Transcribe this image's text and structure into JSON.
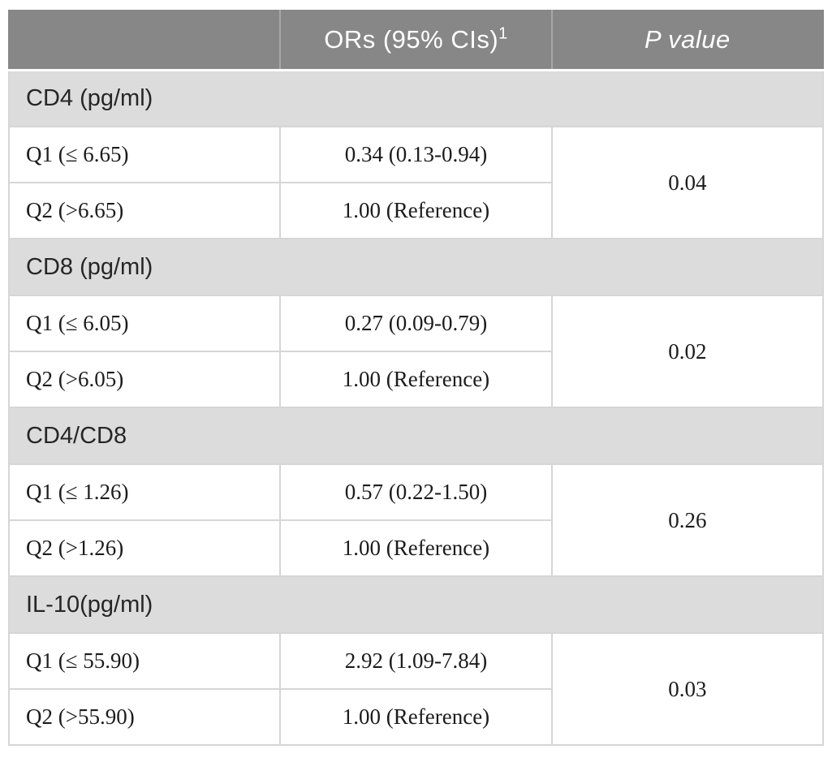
{
  "colors": {
    "header_bg": "#878787",
    "header_text": "#ffffff",
    "header_divider": "#a8a8a8",
    "band_bg": "#dcdcdc",
    "band_text": "#262626",
    "body_text": "#1c1c1c",
    "cell_border": "#d6d6d6",
    "outer_border": "#c9c9c9",
    "page_bg": "#ffffff"
  },
  "header": {
    "col1_label": "",
    "col2_label": "ORs (95% CIs)",
    "col2_superscript": "1",
    "col3_label": "P value"
  },
  "sections": [
    {
      "label": "CD4 (pg/ml)",
      "p_value": "0.04",
      "rows": [
        {
          "quartile": "Q1 (≤ 6.65)",
          "or": "0.34 (0.13-0.94)"
        },
        {
          "quartile": "Q2 (>6.65)",
          "or": "1.00 (Reference)"
        }
      ]
    },
    {
      "label": "CD8 (pg/ml)",
      "p_value": "0.02",
      "rows": [
        {
          "quartile": "Q1 (≤ 6.05)",
          "or": "0.27 (0.09-0.79)"
        },
        {
          "quartile": "Q2 (>6.05)",
          "or": "1.00 (Reference)"
        }
      ]
    },
    {
      "label": "CD4/CD8",
      "p_value": "0.26",
      "rows": [
        {
          "quartile": "Q1 (≤ 1.26)",
          "or": "0.57 (0.22-1.50)"
        },
        {
          "quartile": "Q2 (>1.26)",
          "or": "1.00 (Reference)"
        }
      ]
    },
    {
      "label": "IL-10(pg/ml)",
      "p_value": "0.03",
      "rows": [
        {
          "quartile": "Q1 (≤ 55.90)",
          "or": "2.92 (1.09-7.84)"
        },
        {
          "quartile": "Q2 (>55.90)",
          "or": "1.00 (Reference)"
        }
      ]
    }
  ]
}
